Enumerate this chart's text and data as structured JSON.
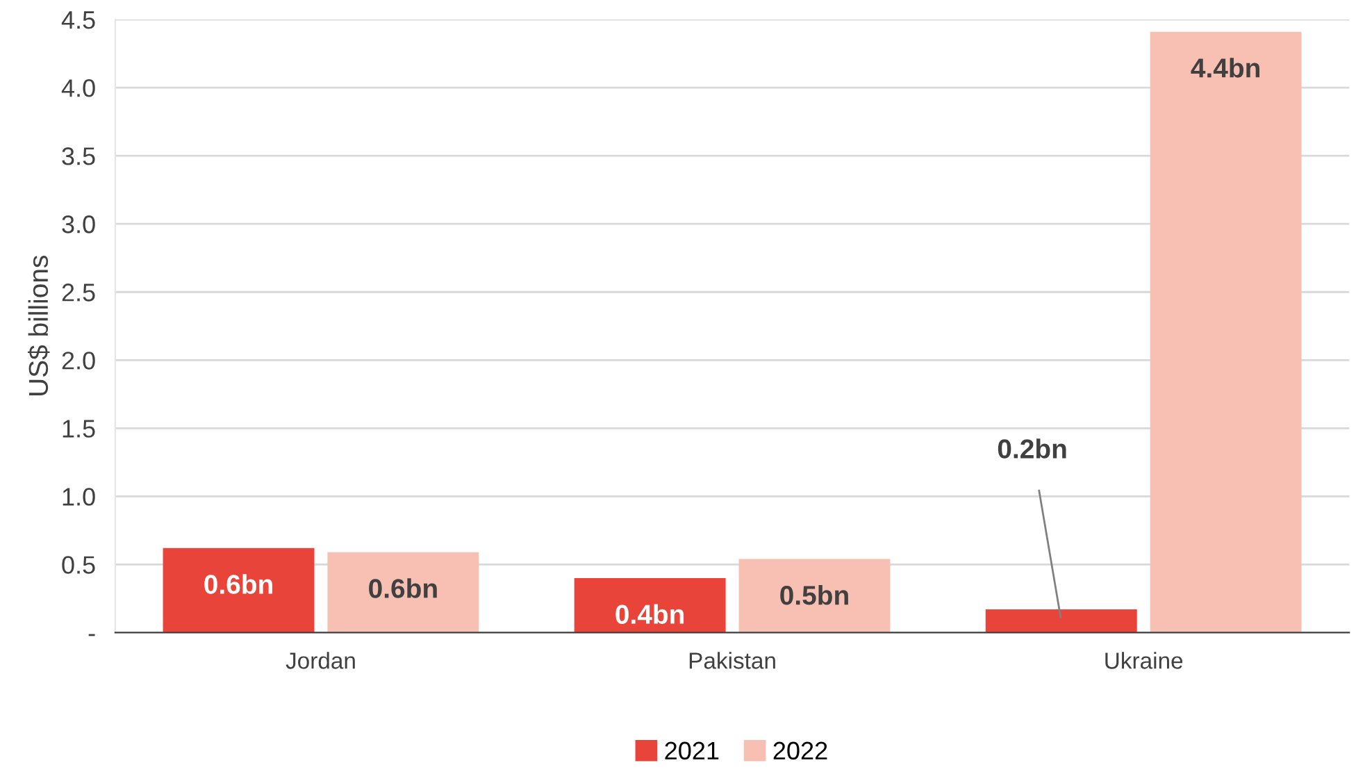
{
  "chart_data": {
    "type": "bar",
    "ylabel": "US$ billions",
    "categories": [
      "Jordan",
      "Pakistan",
      "Ukraine"
    ],
    "series": [
      {
        "name": "2021",
        "color": "#e8443a",
        "values": [
          0.62,
          0.4,
          0.17
        ],
        "value_labels": [
          "0.6bn",
          "0.4bn",
          "0.2bn"
        ]
      },
      {
        "name": "2022",
        "color": "#f8c0b2",
        "values": [
          0.59,
          0.54,
          4.41
        ],
        "value_labels": [
          "0.6bn",
          "0.5bn",
          "4.4bn"
        ]
      }
    ],
    "ylim": [
      0,
      4.5
    ],
    "yticks": [
      {
        "value": 0,
        "label": "-"
      },
      {
        "value": 0.5,
        "label": "0.5"
      },
      {
        "value": 1,
        "label": "1.0"
      },
      {
        "value": 1.5,
        "label": "1.5"
      },
      {
        "value": 2,
        "label": "2.0"
      },
      {
        "value": 2.5,
        "label": "2.5"
      },
      {
        "value": 3,
        "label": "3.0"
      },
      {
        "value": 3.5,
        "label": "3.5"
      },
      {
        "value": 4,
        "label": "4.0"
      },
      {
        "value": 4.5,
        "label": "4.5"
      }
    ],
    "grid": "y",
    "legend": "bottom"
  }
}
